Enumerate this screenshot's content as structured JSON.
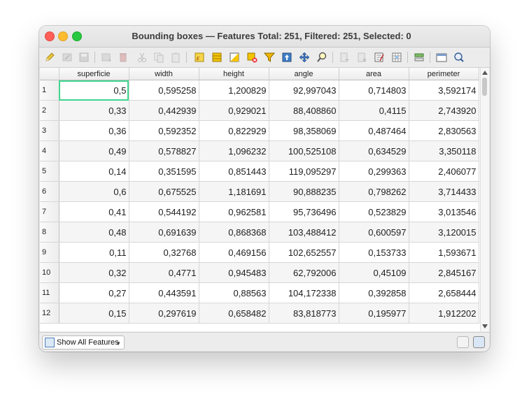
{
  "window": {
    "title": "Bounding boxes — Features Total: 251, Filtered: 251, Selected: 0"
  },
  "toolbar": {
    "icons": [
      "edit-pencil-icon",
      "multi-edit-icon",
      "save-edits-icon",
      "reload-icon",
      "delete-feature-icon",
      "cut-icon",
      "copy-icon",
      "paste-icon",
      "expression-select-icon",
      "select-all-icon",
      "invert-selection-icon",
      "deselect-icon",
      "filter-icon",
      "move-selection-top-icon",
      "pan-to-selection-icon",
      "zoom-to-selection-icon",
      "new-field-icon",
      "delete-field-icon",
      "field-calculator-icon",
      "conditional-formatting-icon",
      "actions-icon",
      "dock-icon",
      "organize-columns-icon"
    ]
  },
  "table": {
    "columns": [
      "superficie",
      "width",
      "height",
      "angle",
      "area",
      "perimeter"
    ],
    "rows": [
      {
        "id": "1",
        "cells": [
          "0,5",
          "0,595258",
          "1,200829",
          "92,997043",
          "0,714803",
          "3,592174"
        ]
      },
      {
        "id": "2",
        "cells": [
          "0,33",
          "0,442939",
          "0,929021",
          "88,408860",
          "0,4115",
          "2,743920"
        ]
      },
      {
        "id": "3",
        "cells": [
          "0,36",
          "0,592352",
          "0,822929",
          "98,358069",
          "0,487464",
          "2,830563"
        ]
      },
      {
        "id": "4",
        "cells": [
          "0,49",
          "0,578827",
          "1,096232",
          "100,525108",
          "0,634529",
          "3,350118"
        ]
      },
      {
        "id": "5",
        "cells": [
          "0,14",
          "0,351595",
          "0,851443",
          "119,095297",
          "0,299363",
          "2,406077"
        ]
      },
      {
        "id": "6",
        "cells": [
          "0,6",
          "0,675525",
          "1,181691",
          "90,888235",
          "0,798262",
          "3,714433"
        ]
      },
      {
        "id": "7",
        "cells": [
          "0,41",
          "0,544192",
          "0,962581",
          "95,736496",
          "0,523829",
          "3,013546"
        ]
      },
      {
        "id": "8",
        "cells": [
          "0,48",
          "0,691639",
          "0,868368",
          "103,488412",
          "0,600597",
          "3,120015"
        ]
      },
      {
        "id": "9",
        "cells": [
          "0,11",
          "0,32768",
          "0,469156",
          "102,652557",
          "0,153733",
          "1,593671"
        ]
      },
      {
        "id": "10",
        "cells": [
          "0,32",
          "0,4771",
          "0,945483",
          "62,792006",
          "0,45109",
          "2,845167"
        ]
      },
      {
        "id": "11",
        "cells": [
          "0,27",
          "0,443591",
          "0,88563",
          "104,172338",
          "0,392858",
          "2,658444"
        ]
      },
      {
        "id": "12",
        "cells": [
          "0,15",
          "0,297619",
          "0,658482",
          "83,818773",
          "0,195977",
          "1,912202"
        ]
      }
    ]
  },
  "bottom": {
    "filter_label": "Show All Features",
    "form_view_icon": "form-view-icon",
    "table_view_icon": "table-view-icon"
  },
  "colors": {
    "current_cell_outline": "#3fd68f",
    "close": "#ff5f57",
    "minimize": "#febc2e",
    "maximize": "#28c840"
  }
}
